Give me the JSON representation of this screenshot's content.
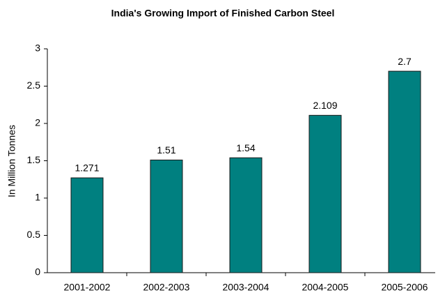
{
  "chart_data": {
    "type": "bar",
    "title": "India's Growing Import of Finished Carbon Steel",
    "y_label": "In Million Tonnes",
    "categories": [
      "2001-2002",
      "2002-2003",
      "2003-2004",
      "2004-2005",
      "2005-2006"
    ],
    "values": [
      1.271,
      1.51,
      1.54,
      2.109,
      2.7
    ],
    "color": "#008080",
    "ylim": [
      0,
      3
    ],
    "yticks": [
      0,
      0.5,
      1,
      1.5,
      2,
      2.5,
      3
    ],
    "grid": false
  }
}
